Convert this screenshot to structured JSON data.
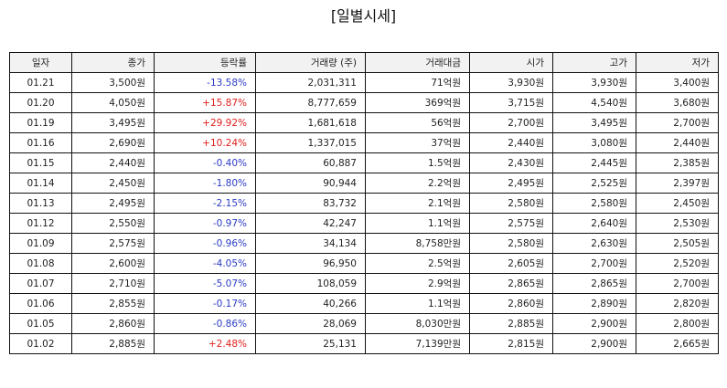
{
  "title": "[일별시세]",
  "columns": [
    "일자",
    "종가",
    "등락률",
    "거래량 (주)",
    "거래대금",
    "시가",
    "고가",
    "저가"
  ],
  "colors": {
    "up": "#e0201e",
    "down": "#2a3bc4"
  },
  "rows": [
    {
      "date": "01.21",
      "close": "3,500원",
      "change": "-13.58%",
      "dir": "down",
      "volume": "2,031,311",
      "amount": "71억원",
      "open": "3,930원",
      "high": "3,930원",
      "low": "3,400원"
    },
    {
      "date": "01.20",
      "close": "4,050원",
      "change": "+15.87%",
      "dir": "up",
      "volume": "8,777,659",
      "amount": "369억원",
      "open": "3,715원",
      "high": "4,540원",
      "low": "3,680원"
    },
    {
      "date": "01.19",
      "close": "3,495원",
      "change": "+29.92%",
      "dir": "up",
      "volume": "1,681,618",
      "amount": "56억원",
      "open": "2,700원",
      "high": "3,495원",
      "low": "2,700원"
    },
    {
      "date": "01.16",
      "close": "2,690원",
      "change": "+10.24%",
      "dir": "up",
      "volume": "1,337,015",
      "amount": "37억원",
      "open": "2,440원",
      "high": "3,080원",
      "low": "2,440원"
    },
    {
      "date": "01.15",
      "close": "2,440원",
      "change": "-0.40%",
      "dir": "down",
      "volume": "60,887",
      "amount": "1.5억원",
      "open": "2,430원",
      "high": "2,445원",
      "low": "2,385원"
    },
    {
      "date": "01.14",
      "close": "2,450원",
      "change": "-1.80%",
      "dir": "down",
      "volume": "90,944",
      "amount": "2.2억원",
      "open": "2,495원",
      "high": "2,525원",
      "low": "2,397원"
    },
    {
      "date": "01.13",
      "close": "2,495원",
      "change": "-2.15%",
      "dir": "down",
      "volume": "83,732",
      "amount": "2.1억원",
      "open": "2,580원",
      "high": "2,580원",
      "low": "2,450원"
    },
    {
      "date": "01.12",
      "close": "2,550원",
      "change": "-0.97%",
      "dir": "down",
      "volume": "42,247",
      "amount": "1.1억원",
      "open": "2,575원",
      "high": "2,640원",
      "low": "2,530원"
    },
    {
      "date": "01.09",
      "close": "2,575원",
      "change": "-0.96%",
      "dir": "down",
      "volume": "34,134",
      "amount": "8,758만원",
      "open": "2,580원",
      "high": "2,630원",
      "low": "2,505원"
    },
    {
      "date": "01.08",
      "close": "2,600원",
      "change": "-4.05%",
      "dir": "down",
      "volume": "96,950",
      "amount": "2.5억원",
      "open": "2,605원",
      "high": "2,700원",
      "low": "2,520원"
    },
    {
      "date": "01.07",
      "close": "2,710원",
      "change": "-5.07%",
      "dir": "down",
      "volume": "108,059",
      "amount": "2.9억원",
      "open": "2,865원",
      "high": "2,865원",
      "low": "2,700원"
    },
    {
      "date": "01.06",
      "close": "2,855원",
      "change": "-0.17%",
      "dir": "down",
      "volume": "40,266",
      "amount": "1.1억원",
      "open": "2,860원",
      "high": "2,890원",
      "low": "2,820원"
    },
    {
      "date": "01.05",
      "close": "2,860원",
      "change": "-0.86%",
      "dir": "down",
      "volume": "28,069",
      "amount": "8,030만원",
      "open": "2,885원",
      "high": "2,900원",
      "low": "2,800원"
    },
    {
      "date": "01.02",
      "close": "2,885원",
      "change": "+2.48%",
      "dir": "up",
      "volume": "25,131",
      "amount": "7,139만원",
      "open": "2,815원",
      "high": "2,900원",
      "low": "2,665원"
    }
  ]
}
